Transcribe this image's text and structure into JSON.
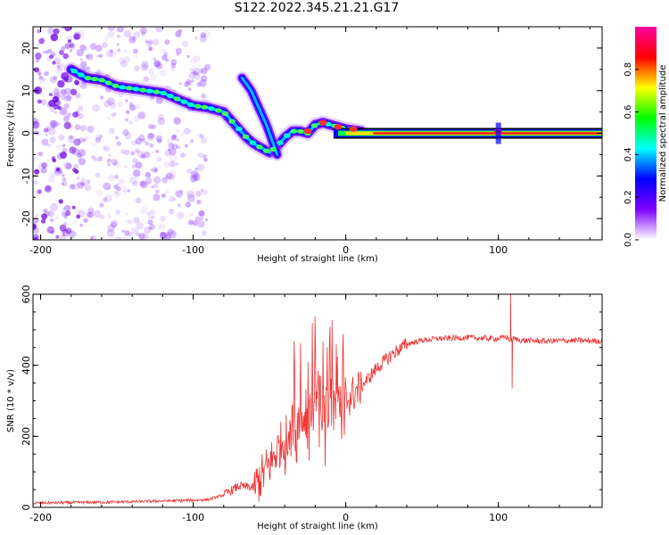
{
  "title": "S122.2022.345.21.21.G17",
  "chart_data": [
    {
      "type": "heatmap",
      "xlabel": "Height of straight line (km)",
      "ylabel": "Frequency (Hz)",
      "xlim": [
        -205,
        168
      ],
      "ylim": [
        -25,
        25
      ],
      "xticks": [
        -200,
        -100,
        0,
        100
      ],
      "yticks": [
        20,
        10,
        0,
        -10,
        -20
      ],
      "colorbar": {
        "label": "Normalized spectral amplitude",
        "range": [
          0,
          1
        ],
        "ticks": [
          0.0,
          0.2,
          0.4,
          0.6,
          0.8
        ],
        "colors": [
          "#ffffff",
          "#8000ff",
          "#0000ff",
          "#00ffff",
          "#00ff00",
          "#ffff00",
          "#ff0000",
          "#ff00a0"
        ]
      },
      "ridge": {
        "x": [
          -180,
          -170,
          -160,
          -150,
          -140,
          -130,
          -120,
          -110,
          -100,
          -90,
          -80,
          -75,
          -70,
          -65,
          -60,
          -55,
          -50,
          -45,
          -40,
          -35,
          -30,
          -25,
          -20,
          -15,
          -10,
          -5,
          0,
          10,
          20,
          100,
          168
        ],
        "y": [
          15,
          13,
          12.5,
          11,
          10.5,
          10,
          9.5,
          8,
          6.5,
          6,
          5,
          3,
          1,
          -1,
          -2.5,
          -3.5,
          -4.5,
          -3,
          -1,
          0.5,
          0.5,
          0,
          2,
          2.5,
          2,
          1.5,
          1,
          0.5,
          0,
          0,
          0
        ]
      },
      "secondary_ridge": {
        "x": [
          -68,
          -62,
          -57,
          -52,
          -48,
          -45
        ],
        "y": [
          13,
          10,
          6,
          2,
          -2,
          -5
        ]
      }
    },
    {
      "type": "line",
      "xlabel": "Height of straight line (km)",
      "ylabel": "SNR (10 * v/v)",
      "xlim": [
        -205,
        168
      ],
      "ylim": [
        0,
        600
      ],
      "xticks": [
        -200,
        -100,
        0,
        100
      ],
      "yticks": [
        0,
        200,
        400,
        600
      ],
      "color": "#ee3333",
      "envelope": {
        "x": [
          -205,
          -150,
          -100,
          -90,
          -80,
          -70,
          -60,
          -50,
          -40,
          -30,
          -20,
          -10,
          0,
          10,
          20,
          30,
          40,
          50,
          60,
          80,
          100,
          105,
          108,
          110,
          115,
          130,
          150,
          168
        ],
        "y": [
          12,
          15,
          20,
          22,
          35,
          60,
          55,
          120,
          200,
          250,
          270,
          280,
          300,
          340,
          390,
          430,
          460,
          470,
          475,
          478,
          475,
          480,
          470,
          475,
          470,
          468,
          470,
          468
        ]
      },
      "peaks": [
        {
          "x": 108,
          "y": 600
        },
        {
          "x": 109,
          "y": 335
        }
      ]
    }
  ]
}
